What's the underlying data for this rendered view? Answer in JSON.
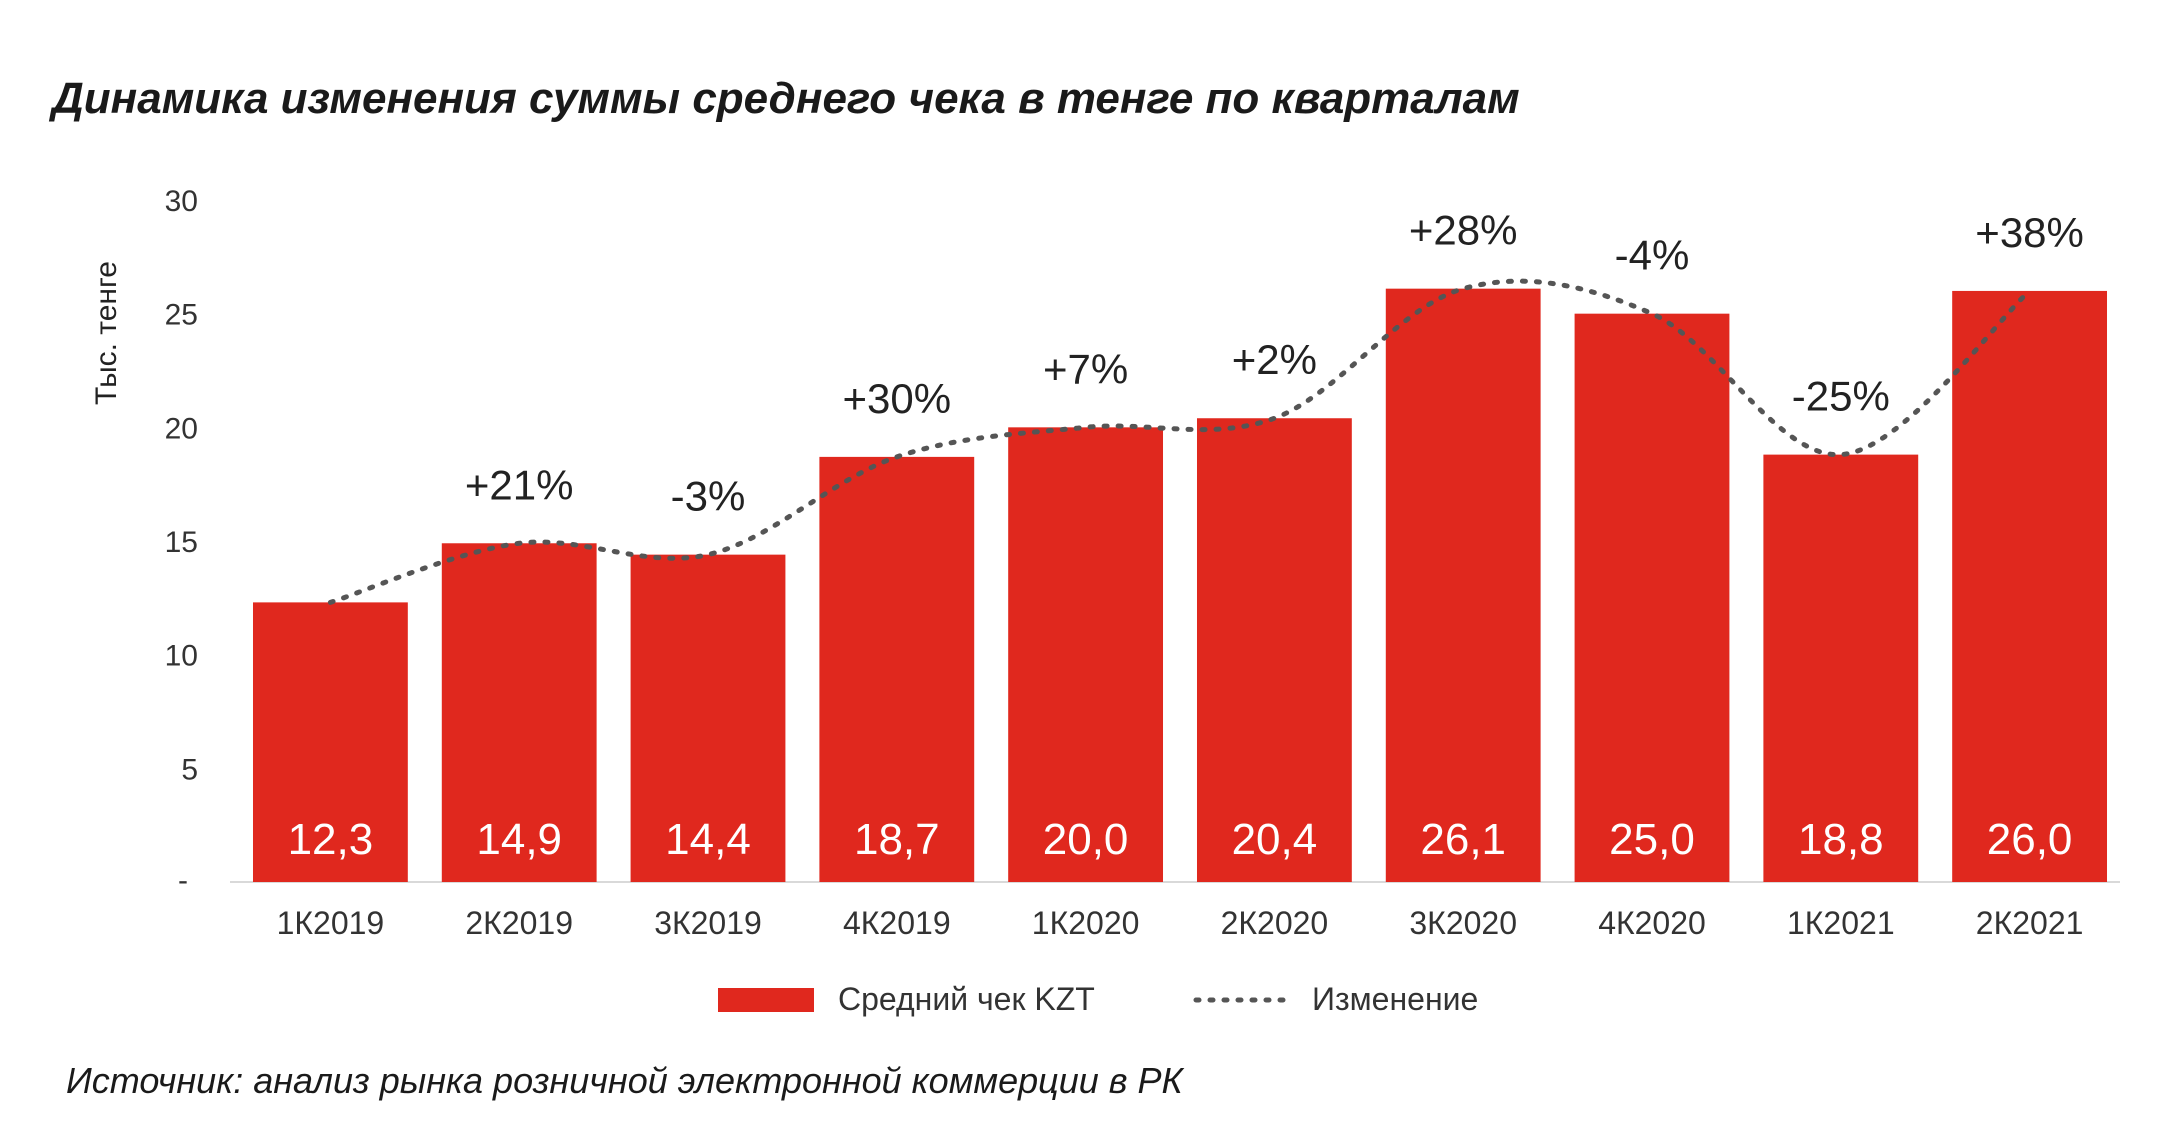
{
  "title": "Динамика изменения суммы среднего чека в тенге по кварталам",
  "source": "Источник: анализ рынка розничной электронной коммерции в РК",
  "colors": {
    "bar": "#e0281e",
    "line": "#555555"
  },
  "chart_data": {
    "type": "bar",
    "ylabel": "Тыс. тенге",
    "ylim": [
      0,
      30
    ],
    "yticks": [
      30,
      25,
      20,
      15,
      10,
      5
    ],
    "zero_tick_label": "-",
    "grid": false,
    "legend_position": "bottom",
    "categories": [
      "1К2019",
      "2К2019",
      "3К2019",
      "4К2019",
      "1К2020",
      "2К2020",
      "3К2020",
      "4К2020",
      "1К2021",
      "2К2021"
    ],
    "series": [
      {
        "name": "Средний чек KZT",
        "type": "bar",
        "values": [
          12.3,
          14.9,
          14.4,
          18.7,
          20.0,
          20.4,
          26.1,
          25.0,
          18.8,
          26.0
        ],
        "data_labels": [
          "12,3",
          "14,9",
          "14,4",
          "18,7",
          "20,0",
          "20,4",
          "26,1",
          "25,0",
          "18,8",
          "26,0"
        ]
      },
      {
        "name": "Изменение",
        "type": "line",
        "style": "dotted",
        "change_labels": [
          "",
          "+21%",
          "-3%",
          "+30%",
          "+7%",
          "+2%",
          "+28%",
          "-4%",
          "-25%",
          "+38%"
        ]
      }
    ]
  }
}
